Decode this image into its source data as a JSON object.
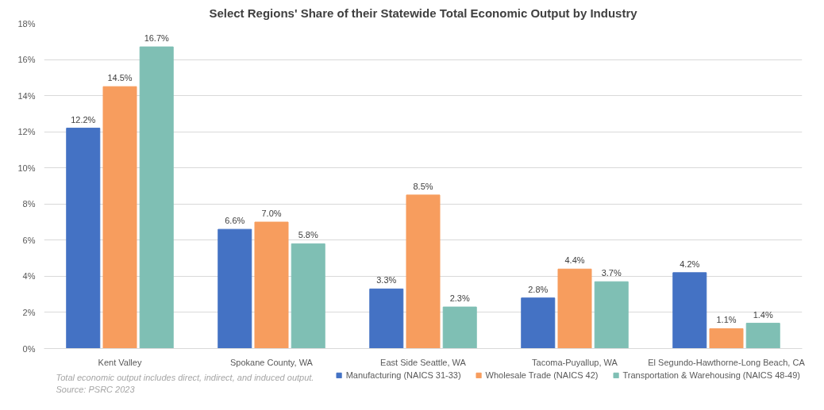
{
  "chart_data": {
    "type": "bar",
    "title": "Select Regions' Share of their Statewide Total Economic Output by Industry",
    "categories": [
      "Kent Valley",
      "Spokane County, WA",
      "East Side Seattle, WA",
      "Tacoma-Puyallup, WA",
      "El Segundo-Hawthorne-Long Beach, CA"
    ],
    "series": [
      {
        "name": "Manufacturing (NAICS 31-33)",
        "color": "#4472c4",
        "values": [
          12.2,
          6.6,
          3.3,
          2.8,
          4.2
        ],
        "value_labels": [
          "12.2%",
          "6.6%",
          "3.3%",
          "2.8%",
          "4.2%"
        ]
      },
      {
        "name": "Wholesale Trade (NAICS 42)",
        "color": "#f79d5e",
        "values": [
          14.5,
          7.0,
          8.5,
          4.4,
          1.1
        ],
        "value_labels": [
          "14.5%",
          "7.0%",
          "8.5%",
          "4.4%",
          "1.1%"
        ]
      },
      {
        "name": "Transportation & Warehousing (NAICS 48-49)",
        "color": "#7fbfb4",
        "values": [
          16.7,
          5.8,
          2.3,
          3.7,
          1.4
        ],
        "value_labels": [
          "16.7%",
          "5.8%",
          "2.3%",
          "3.7%",
          "1.4%"
        ]
      }
    ],
    "ylim": [
      0,
      18
    ],
    "yticks": [
      {
        "value": 0,
        "label": "0%"
      },
      {
        "value": 2,
        "label": "2%"
      },
      {
        "value": 4,
        "label": "4%"
      },
      {
        "value": 6,
        "label": "6%"
      },
      {
        "value": 8,
        "label": "8%"
      },
      {
        "value": 10,
        "label": "10%"
      },
      {
        "value": 12,
        "label": "12%"
      },
      {
        "value": 14,
        "label": "14%"
      },
      {
        "value": 16,
        "label": "16%"
      },
      {
        "value": 18,
        "label": "18%"
      }
    ],
    "grid": "y",
    "legend": "bottom right",
    "annotations": [
      "Total economic output includes direct, indirect, and induced output.",
      "Source: PSRC 2023"
    ]
  }
}
